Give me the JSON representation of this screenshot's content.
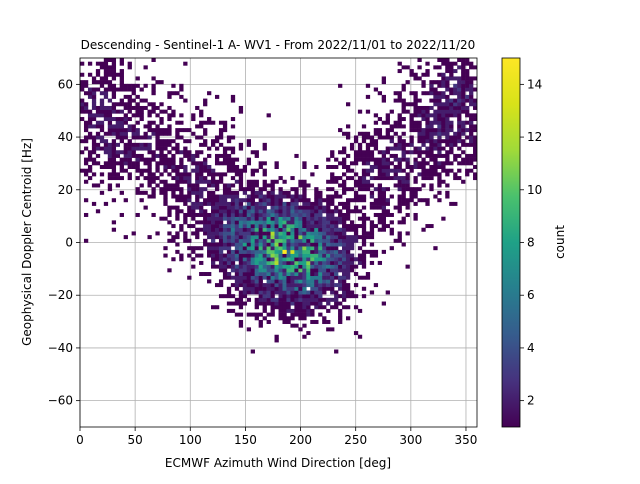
{
  "chart_data": {
    "type": "heatmap",
    "title": "Descending - Sentinel-1 A- WV1 - From 2022/11/01 to 2022/11/20",
    "xlabel": "ECMWF Azimuth Wind Direction [deg]",
    "ylabel": "Geophysical Doppler Centroid [Hz]",
    "xlim": [
      0,
      360
    ],
    "ylim": [
      -70,
      70
    ],
    "xticks": [
      0,
      50,
      100,
      150,
      200,
      250,
      300,
      350
    ],
    "yticks": [
      -60,
      -40,
      -20,
      0,
      20,
      40,
      60
    ],
    "grid": true,
    "bin_size": {
      "x": 3.6,
      "y": 1.4
    },
    "colorbar": {
      "label": "count",
      "colormap": "viridis",
      "min": 1,
      "max": 15,
      "ticks": [
        2,
        4,
        6,
        8,
        10,
        12,
        14
      ]
    },
    "density_clusters": [
      {
        "x": 185,
        "y": -3,
        "sx": 30,
        "sy": 10,
        "peak": 8
      },
      {
        "x": 160,
        "y": 5,
        "sx": 25,
        "sy": 8,
        "peak": 4
      },
      {
        "x": 205,
        "y": -8,
        "sx": 25,
        "sy": 10,
        "peak": 4
      },
      {
        "x": 40,
        "y": 40,
        "sx": 25,
        "sy": 12,
        "peak": 1.5
      },
      {
        "x": 330,
        "y": 45,
        "sx": 25,
        "sy": 12,
        "peak": 2
      },
      {
        "x": 110,
        "y": 25,
        "sx": 25,
        "sy": 12,
        "peak": 1.5
      },
      {
        "x": 275,
        "y": 25,
        "sx": 25,
        "sy": 12,
        "peak": 1.5
      },
      {
        "x": 15,
        "y": 55,
        "sx": 15,
        "sy": 10,
        "peak": 1.2
      },
      {
        "x": 345,
        "y": 60,
        "sx": 12,
        "sy": 8,
        "peak": 1.2
      }
    ],
    "peak_bin": {
      "x": 186,
      "y": -4,
      "count": 15
    }
  }
}
